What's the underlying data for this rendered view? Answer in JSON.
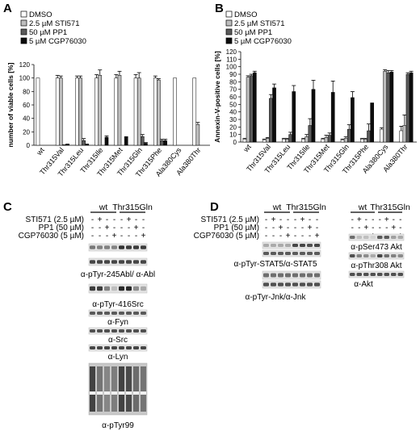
{
  "panels": {
    "A": "A",
    "B": "B",
    "C": "C",
    "D": "D"
  },
  "legend": [
    {
      "label": "DMSO",
      "color": "#ffffff"
    },
    {
      "label": "2.5 µM STI571",
      "color": "#bdbdbd"
    },
    {
      "label": "50 µM PP1",
      "color": "#5a5a5a"
    },
    {
      "label": "5 µM CGP76030",
      "color": "#0d0d0d"
    }
  ],
  "chart_data": [
    {
      "type": "bar",
      "ylabel": "number of viable cells [%]",
      "ylim": [
        0,
        120
      ],
      "yticks": [
        0,
        20,
        40,
        60,
        80,
        100,
        120
      ],
      "categories": [
        "wt",
        "Thr315Val",
        "Thr315Leu",
        "Thr315Ile",
        "Thr315Met",
        "Thr315Gln",
        "Thr315Phe",
        "Ala380Cys",
        "Ala380Thr"
      ],
      "series": [
        {
          "name": "DMSO",
          "values": [
            100,
            100,
            100,
            100,
            100,
            100,
            100,
            100,
            100
          ],
          "errors": [
            0,
            4,
            3,
            5,
            5,
            5,
            3,
            0,
            0
          ]
        },
        {
          "name": "2.5 µM STI571",
          "values": [
            0,
            100,
            100,
            104,
            104,
            100,
            97,
            0,
            31
          ],
          "errors": [
            0,
            3,
            3,
            8,
            6,
            8,
            2,
            0,
            3
          ]
        },
        {
          "name": "50 µM PP1",
          "values": [
            0,
            1,
            7,
            0,
            0,
            13,
            7,
            0,
            0
          ],
          "errors": [
            0,
            0,
            3,
            0,
            0,
            3,
            2,
            0,
            0
          ]
        },
        {
          "name": "5 µM CGP76030",
          "values": [
            0,
            2,
            2,
            12,
            13,
            3,
            7,
            0,
            0
          ],
          "errors": [
            0,
            0,
            0,
            2,
            0,
            1,
            2,
            0,
            0
          ]
        }
      ]
    },
    {
      "type": "bar",
      "ylabel": "Annexin-V-positive cells [%]",
      "ylim": [
        0,
        120
      ],
      "yticks": [
        0,
        10,
        20,
        30,
        40,
        50,
        60,
        70,
        80,
        90,
        100,
        110,
        120
      ],
      "categories": [
        "wt",
        "Thr315Val",
        "Thr315Leu",
        "Thr315Ile",
        "Thr315Met",
        "Thr315Gln",
        "Thr315Phe",
        "Ala380Cys",
        "Ala380Thr"
      ],
      "series": [
        {
          "name": "DMSO",
          "values": [
            4,
            3,
            4,
            4,
            4,
            3,
            4,
            17,
            15
          ],
          "errors": [
            1,
            1,
            1,
            1,
            1,
            1,
            1,
            2,
            6
          ]
        },
        {
          "name": "2.5 µM STI571",
          "values": [
            86,
            5,
            4,
            7,
            6,
            5,
            4,
            94,
            22
          ],
          "errors": [
            2,
            1,
            1,
            3,
            3,
            2,
            1,
            2,
            14
          ]
        },
        {
          "name": "50 µM PP1",
          "values": [
            88,
            58,
            10,
            22,
            9,
            17,
            15,
            92,
            90
          ],
          "errors": [
            2,
            5,
            3,
            9,
            3,
            6,
            9,
            3,
            2
          ]
        },
        {
          "name": "5 µM CGP76030",
          "values": [
            92,
            72,
            67,
            70,
            66,
            59,
            52,
            93,
            92
          ],
          "errors": [
            2,
            5,
            8,
            12,
            15,
            8,
            0,
            2,
            2
          ]
        }
      ]
    }
  ],
  "blotC": {
    "groups": [
      "wt",
      "Thr315Gln"
    ],
    "rows": [
      {
        "label": "STI571 (2.5 µM)",
        "signs": [
          "-",
          "+",
          "-",
          "-",
          "-",
          "+",
          "-",
          "-"
        ]
      },
      {
        "label": "PP1 (50 µM)",
        "signs": [
          "-",
          "-",
          "+",
          "-",
          "-",
          "-",
          "+",
          "-"
        ]
      },
      {
        "label": "CGP76030 (5 µM)",
        "signs": [
          "-",
          "-",
          "-",
          "+",
          "-",
          "-",
          "-",
          "+"
        ]
      }
    ],
    "blots": [
      "α-pTyr-245Abl/ α-Abl",
      "α-pTyr-416Src",
      "α-Fyn",
      "α-Src",
      "α-Lyn",
      "α-pTyr99"
    ]
  },
  "blotD": {
    "groups": [
      "wt",
      "Thr315Gln"
    ],
    "rows": [
      {
        "label": "STI571 (2.5 µM)",
        "signs": [
          "-",
          "+",
          "-",
          "-",
          "-",
          "+",
          "-",
          "-"
        ]
      },
      {
        "label": "PP1 (50 µM)",
        "signs": [
          "-",
          "-",
          "+",
          "-",
          "-",
          "-",
          "+",
          "-"
        ]
      },
      {
        "label": "CGP76030 (5 µM)",
        "signs": [
          "-",
          "-",
          "-",
          "+",
          "-",
          "-",
          "-",
          "+"
        ]
      }
    ],
    "blots": [
      "α-pTyr-STAT5/α-STAT5",
      "α-pTyr-Jnk/α-Jnk"
    ]
  },
  "blotD2": {
    "groups": [
      "wt",
      "Thr315Gln"
    ],
    "signs": [
      [
        "-",
        "+",
        "-",
        "-",
        "-",
        "+",
        "-",
        "-"
      ],
      [
        "-",
        "-",
        "+",
        "-",
        "-",
        "-",
        "+",
        "-"
      ],
      [
        "-",
        "-",
        "-",
        "+",
        "-",
        "-",
        "-",
        "+"
      ]
    ],
    "blots": [
      "α-pSer473 Akt",
      "α-pThr308 Akt",
      "α-Akt"
    ]
  }
}
